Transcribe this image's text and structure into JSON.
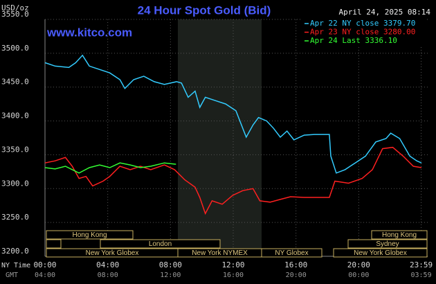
{
  "chart_data": {
    "type": "line",
    "title": "24 Hour Spot Gold (Bid)",
    "date_label": "April 24, 2025 08:14",
    "watermark": "www.kitco.com",
    "y_unit_label": "USD/oz",
    "x_row_labels": [
      "NY Time",
      "GMT"
    ],
    "xlim": [
      0,
      24
    ],
    "xticks": [
      {
        "value": 0,
        "label": "00:00"
      },
      {
        "value": 4,
        "label": "04:00"
      },
      {
        "value": 8,
        "label": "08:00"
      },
      {
        "value": 12,
        "label": "12:00"
      },
      {
        "value": 16,
        "label": "16:00"
      },
      {
        "value": 20,
        "label": "20:00"
      },
      {
        "value": 23.98,
        "label": "23:59"
      }
    ],
    "gmt_labels": [
      "04:00",
      "08:00",
      "12:00",
      "16:00",
      "20:00",
      "00:00",
      "03:59"
    ],
    "ylim": [
      3200,
      3550
    ],
    "yticks": [
      {
        "value": 3200,
        "label": "3200.0"
      },
      {
        "value": 3250,
        "label": "3250.0"
      },
      {
        "value": 3300,
        "label": "3300.0"
      },
      {
        "value": 3350,
        "label": "3350.0"
      },
      {
        "value": 3400,
        "label": "3400.0"
      },
      {
        "value": 3450,
        "label": "3450.0"
      },
      {
        "value": 3500,
        "label": "3500.0"
      },
      {
        "value": 3550,
        "label": "3550.0"
      }
    ],
    "grid": true,
    "legend_position": "top-right",
    "sessions": [
      "Hong Kong",
      "London",
      "New York Globex",
      "New York NYMEX",
      "NY Globex",
      "Hong Kong",
      "Sydney",
      "New York Globex"
    ],
    "series": [
      {
        "name": "Apr 22 NY close 3379.70",
        "color": "#33ccff",
        "x": [
          0,
          0.65,
          1.52,
          1.96,
          2.39,
          2.83,
          3.48,
          4.13,
          4.78,
          5.09,
          5.65,
          6.3,
          6.96,
          7.61,
          8.39,
          8.7,
          9.13,
          9.57,
          9.87,
          10.22,
          10.87,
          11.52,
          12.17,
          12.61,
          12.83,
          13.26,
          13.61,
          14.13,
          14.57,
          15,
          15.43,
          15.87,
          16.52,
          17.17,
          18.13,
          18.22,
          18.57,
          19.13,
          19.78,
          20.43,
          21.09,
          21.74,
          22.04,
          22.61,
          23.26,
          23.7,
          24
        ],
        "values": [
          3486,
          3481,
          3479,
          3486,
          3497,
          3481,
          3476,
          3471,
          3461,
          3448,
          3461,
          3466,
          3458,
          3454,
          3458,
          3456,
          3435,
          3444,
          3420,
          3435,
          3430,
          3425,
          3415,
          3389,
          3376,
          3394,
          3405,
          3400,
          3389,
          3376,
          3385,
          3372,
          3379,
          3380,
          3380,
          3348,
          3323,
          3328,
          3338,
          3348,
          3369,
          3374,
          3382,
          3374,
          3348,
          3341,
          3338
        ]
      },
      {
        "name": "Apr 23 NY close 3280.00",
        "color": "#ff2020",
        "x": [
          0,
          0.65,
          1.3,
          1.74,
          2.17,
          2.61,
          3.04,
          3.7,
          4.13,
          4.78,
          5.43,
          6.09,
          6.74,
          7.61,
          8.26,
          8.91,
          9.57,
          9.87,
          10.22,
          10.65,
          11.3,
          11.96,
          12.61,
          13.26,
          13.7,
          14.35,
          15,
          15.65,
          16.52,
          18.13,
          18.48,
          19.35,
          20.22,
          20.87,
          21.52,
          22.17,
          22.83,
          23.48,
          24
        ],
        "values": [
          3338,
          3341,
          3346,
          3333,
          3315,
          3318,
          3304,
          3311,
          3318,
          3333,
          3328,
          3333,
          3328,
          3335,
          3328,
          3313,
          3302,
          3287,
          3263,
          3282,
          3277,
          3290,
          3297,
          3300,
          3282,
          3280,
          3284,
          3288,
          3287,
          3287,
          3311,
          3308,
          3315,
          3328,
          3359,
          3361,
          3348,
          3333,
          3331
        ]
      },
      {
        "name": "Apr 24 Last 3336.10",
        "color": "#33ff33",
        "x": [
          0,
          0.65,
          1.3,
          1.74,
          2.17,
          2.83,
          3.48,
          4.13,
          4.78,
          5.43,
          6.09,
          6.74,
          7.61,
          8.35
        ],
        "values": [
          3331,
          3329,
          3333,
          3328,
          3323,
          3331,
          3335,
          3331,
          3338,
          3335,
          3331,
          3333,
          3338,
          3336
        ]
      }
    ]
  }
}
